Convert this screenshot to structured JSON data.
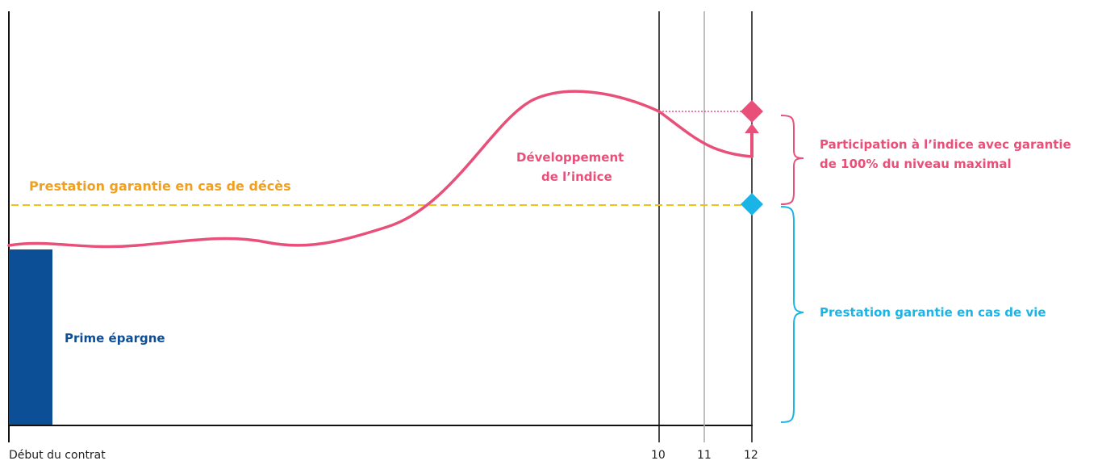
{
  "labels": {
    "death_benefit": "Prestation garantie en cas de décès",
    "index_development_line1": "Développement",
    "index_development_line2": "de l’indice",
    "participation_line1": "Participation à l’indice avec garantie",
    "participation_line2": "de 100% du niveau maximal",
    "life_benefit": "Prestation garantie en cas de vie",
    "savings_premium": "Prime épargne",
    "contract_start": "Début du contrat"
  },
  "ticks": [
    "10",
    "11",
    "12"
  ],
  "colors": {
    "index_curve": "#e8507a",
    "death_line": "#f0c020",
    "death_label": "#f0a020",
    "life": "#1ab4e6",
    "premium": "#0d4f96",
    "axis": "#111111",
    "gridline_grey": "#aaaaaa"
  }
}
